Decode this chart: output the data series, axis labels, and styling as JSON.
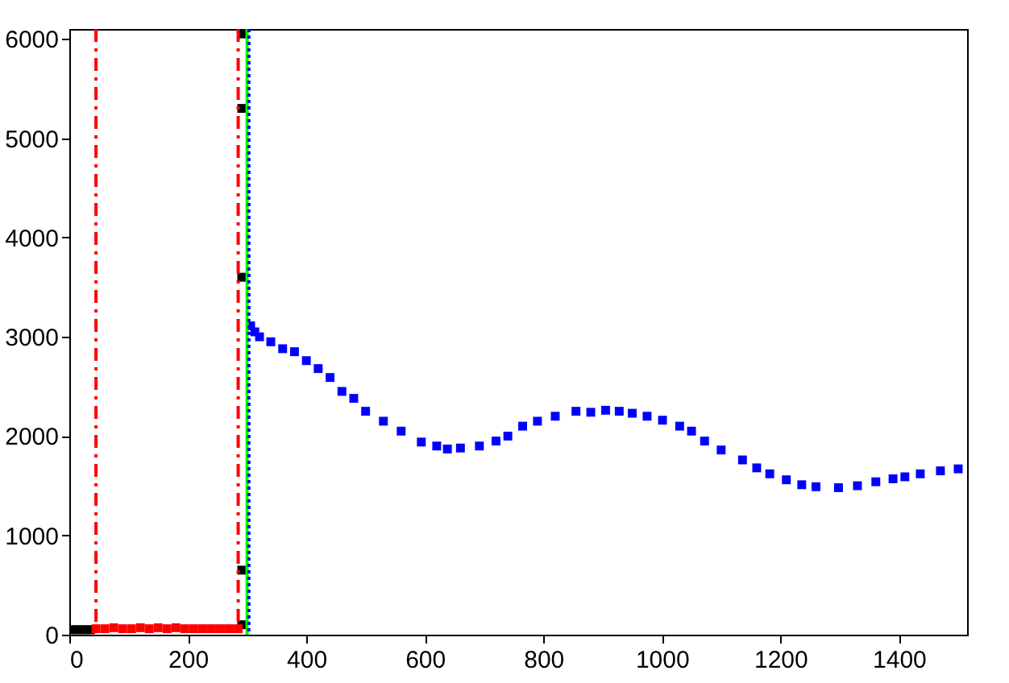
{
  "chart_data": {
    "type": "scatter",
    "marker": "square",
    "grid": false,
    "xlim": [
      0,
      1515
    ],
    "xticks": [
      0,
      200,
      400,
      600,
      800,
      1000,
      1200,
      1400
    ],
    "ylim": [
      0,
      6100
    ],
    "yticks": [
      0,
      1000,
      2000,
      3000,
      4000,
      5000,
      6000
    ],
    "series": [
      {
        "color": "#000000",
        "x": [
          4,
          12,
          20,
          28,
          36,
          291,
          291,
          291,
          291,
          291
        ],
        "values": [
          50,
          50,
          50,
          50,
          50,
          100,
          650,
          3600,
          5300,
          6050
        ]
      },
      {
        "color": "#ff0000",
        "x": [
          45,
          60,
          75,
          90,
          105,
          120,
          135,
          150,
          165,
          180,
          195,
          210,
          225,
          240,
          255,
          270,
          285
        ],
        "values": [
          60,
          60,
          70,
          60,
          60,
          70,
          60,
          70,
          60,
          70,
          60,
          60,
          60,
          60,
          60,
          60,
          60
        ]
      },
      {
        "color": "#0000ff",
        "x": [
          306,
          313,
          321,
          340,
          360,
          380,
          400,
          420,
          440,
          460,
          480,
          500,
          530,
          560,
          594,
          620,
          638,
          660,
          692,
          720,
          740,
          765,
          790,
          820,
          855,
          880,
          905,
          928,
          950,
          975,
          1001,
          1030,
          1050,
          1072,
          1100,
          1136,
          1160,
          1182,
          1210,
          1236,
          1260,
          1298,
          1330,
          1361,
          1390,
          1410,
          1436,
          1470,
          1500
        ],
        "values": [
          3110,
          3050,
          3000,
          2950,
          2880,
          2850,
          2760,
          2680,
          2590,
          2450,
          2380,
          2250,
          2150,
          2050,
          1940,
          1900,
          1870,
          1880,
          1900,
          1950,
          2000,
          2100,
          2150,
          2200,
          2250,
          2240,
          2260,
          2250,
          2230,
          2200,
          2160,
          2100,
          2050,
          1950,
          1860,
          1760,
          1680,
          1620,
          1560,
          1510,
          1490,
          1480,
          1500,
          1540,
          1570,
          1590,
          1620,
          1650,
          1670
        ]
      }
    ],
    "ref_lines": [
      {
        "axis": "x",
        "value": 45,
        "color": "#ff0000",
        "line_style": "dashed"
      },
      {
        "axis": "x",
        "value": 285,
        "color": "#ff0000",
        "line_style": "dashed"
      },
      {
        "axis": "x",
        "value": 300,
        "color": "#00ff00",
        "line_style": "solid"
      },
      {
        "axis": "x",
        "value": 303,
        "color": "#0000ff",
        "line_style": "dotted"
      }
    ]
  }
}
